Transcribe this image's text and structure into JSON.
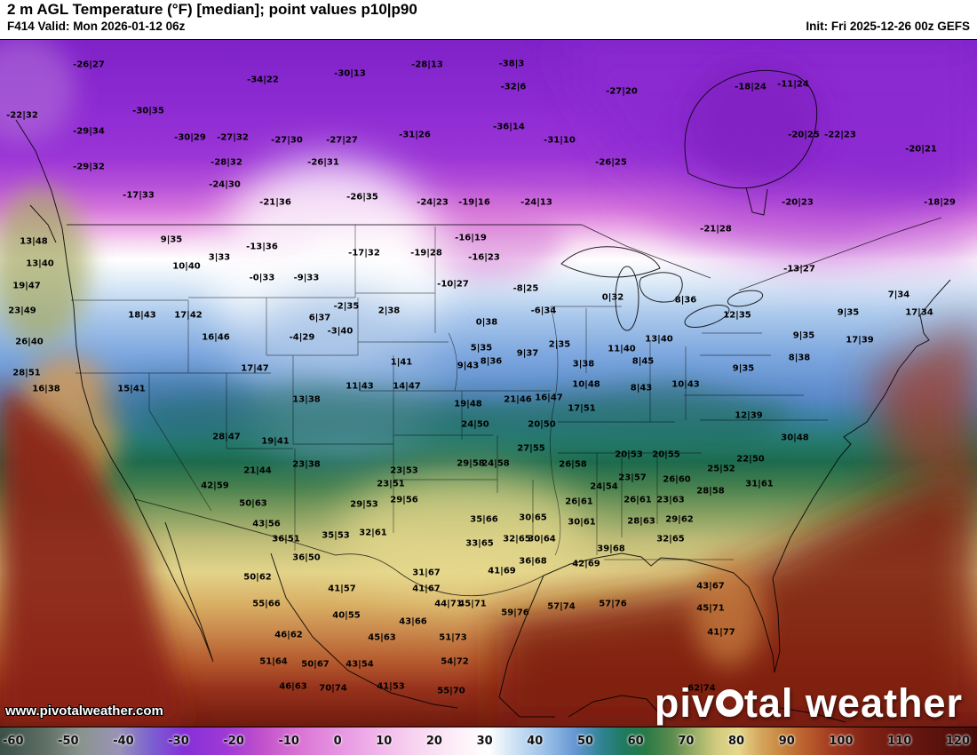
{
  "header": {
    "title": "2 m AGL Temperature (°F) [median]; point values p10|p90",
    "valid": "F414 Valid: Mon 2026-01-12 06z",
    "init": "Init: Fri 2025-12-26 00z GEFS"
  },
  "watermark": {
    "url_text": "www.pivotalweather.com",
    "brand_p1": "piv",
    "brand_p2": "tal weather"
  },
  "colorbar": {
    "ticks": [
      "-60",
      "-50",
      "-40",
      "-30",
      "-20",
      "-10",
      "0",
      "10",
      "20",
      "30",
      "40",
      "50",
      "60",
      "70",
      "80",
      "90",
      "100",
      "110",
      "120"
    ],
    "stops": [
      {
        "v": -60,
        "c": "#3c5148"
      },
      {
        "v": -52,
        "c": "#5d6e64"
      },
      {
        "v": -45,
        "c": "#8a948e"
      },
      {
        "v": -38,
        "c": "#9a93b8"
      },
      {
        "v": -32,
        "c": "#7a5fd0"
      },
      {
        "v": -26,
        "c": "#8530d8"
      },
      {
        "v": -18,
        "c": "#a03ad6"
      },
      {
        "v": -12,
        "c": "#c050cc"
      },
      {
        "v": -6,
        "c": "#d76fd2"
      },
      {
        "v": 0,
        "c": "#e28ade"
      },
      {
        "v": 8,
        "c": "#efaee8"
      },
      {
        "v": 16,
        "c": "#f7d2f0"
      },
      {
        "v": 24,
        "c": "#fdeef8"
      },
      {
        "v": 30,
        "c": "#ffffff"
      },
      {
        "v": 34,
        "c": "#d5e6f5"
      },
      {
        "v": 40,
        "c": "#a0c4ea"
      },
      {
        "v": 46,
        "c": "#6596d2"
      },
      {
        "v": 51,
        "c": "#2f8390"
      },
      {
        "v": 55,
        "c": "#1f7a5e"
      },
      {
        "v": 59,
        "c": "#2a7a47"
      },
      {
        "v": 64,
        "c": "#5e8c4f"
      },
      {
        "v": 68,
        "c": "#9aae66"
      },
      {
        "v": 72,
        "c": "#d2cb7e"
      },
      {
        "v": 76,
        "c": "#e5d88c"
      },
      {
        "v": 80,
        "c": "#d6a75e"
      },
      {
        "v": 84,
        "c": "#c8863f"
      },
      {
        "v": 88,
        "c": "#bc622f"
      },
      {
        "v": 93,
        "c": "#a43c20"
      },
      {
        "v": 100,
        "c": "#7f2214"
      },
      {
        "v": 108,
        "c": "#671610"
      },
      {
        "v": 115,
        "c": "#54100b"
      },
      {
        "v": 120,
        "c": "#470c08"
      }
    ]
  },
  "map": {
    "points": [
      [
        100,
        73,
        "-26|27"
      ],
      [
        296,
        90,
        "-34|22"
      ],
      [
        394,
        83,
        "-30|13"
      ],
      [
        481,
        73,
        "-28|13"
      ],
      [
        576,
        72,
        "-38|3"
      ],
      [
        578,
        98,
        "-32|6"
      ],
      [
        700,
        103,
        "-27|20"
      ],
      [
        845,
        98,
        "-18|24"
      ],
      [
        893,
        95,
        "-11|24"
      ],
      [
        25,
        130,
        "-22|32"
      ],
      [
        167,
        125,
        "-30|35"
      ],
      [
        100,
        148,
        "-29|34"
      ],
      [
        214,
        155,
        "-30|29"
      ],
      [
        262,
        155,
        "-27|32"
      ],
      [
        323,
        158,
        "-27|30"
      ],
      [
        385,
        158,
        "-27|27"
      ],
      [
        467,
        152,
        "-31|26"
      ],
      [
        573,
        143,
        "-36|14"
      ],
      [
        630,
        158,
        "-31|10"
      ],
      [
        905,
        152,
        "-20|25"
      ],
      [
        946,
        152,
        "-22|23"
      ],
      [
        1037,
        168,
        "-20|21"
      ],
      [
        100,
        188,
        "-29|32"
      ],
      [
        255,
        183,
        "-28|32"
      ],
      [
        364,
        183,
        "-26|31"
      ],
      [
        688,
        183,
        "-26|25"
      ],
      [
        156,
        220,
        "-17|33"
      ],
      [
        253,
        208,
        "-24|30"
      ],
      [
        310,
        228,
        "-21|36"
      ],
      [
        408,
        222,
        "-26|35"
      ],
      [
        487,
        228,
        "-24|23"
      ],
      [
        534,
        228,
        "-19|16"
      ],
      [
        604,
        228,
        "-24|13"
      ],
      [
        806,
        258,
        "-21|28"
      ],
      [
        898,
        228,
        "-20|23"
      ],
      [
        1058,
        228,
        "-18|29"
      ],
      [
        38,
        272,
        "13|48"
      ],
      [
        45,
        297,
        "13|40"
      ],
      [
        30,
        322,
        "19|47"
      ],
      [
        25,
        350,
        "23|49"
      ],
      [
        33,
        385,
        "26|40"
      ],
      [
        30,
        420,
        "28|51"
      ],
      [
        52,
        438,
        "16|38"
      ],
      [
        193,
        270,
        "9|35"
      ],
      [
        210,
        300,
        "10|40"
      ],
      [
        160,
        355,
        "18|43"
      ],
      [
        212,
        355,
        "17|42"
      ],
      [
        243,
        380,
        "16|46"
      ],
      [
        148,
        438,
        "15|41"
      ],
      [
        287,
        415,
        "17|47"
      ],
      [
        247,
        290,
        "3|33"
      ],
      [
        295,
        313,
        "-0|33"
      ],
      [
        345,
        313,
        "-9|33"
      ],
      [
        295,
        278,
        "-13|36"
      ],
      [
        410,
        285,
        "-17|32"
      ],
      [
        480,
        285,
        "-19|28"
      ],
      [
        530,
        268,
        "-16|19"
      ],
      [
        545,
        290,
        "-16|23"
      ],
      [
        390,
        345,
        "-2|35"
      ],
      [
        438,
        350,
        "2|38"
      ],
      [
        340,
        380,
        "-4|29"
      ],
      [
        383,
        373,
        "-3|40"
      ],
      [
        360,
        358,
        "6|37"
      ],
      [
        510,
        320,
        "-10|27"
      ],
      [
        592,
        325,
        "-8|25"
      ],
      [
        612,
        350,
        "-6|34"
      ],
      [
        690,
        335,
        "0|32"
      ],
      [
        548,
        363,
        "0|38"
      ],
      [
        452,
        408,
        "1|41"
      ],
      [
        405,
        435,
        "11|43"
      ],
      [
        345,
        450,
        "13|38"
      ],
      [
        458,
        435,
        "14|47"
      ],
      [
        527,
        412,
        "9|43"
      ],
      [
        553,
        407,
        "8|36"
      ],
      [
        594,
        398,
        "9|37"
      ],
      [
        542,
        392,
        "5|35"
      ],
      [
        630,
        388,
        "2|35"
      ],
      [
        657,
        410,
        "3|38"
      ],
      [
        700,
        393,
        "11|40"
      ],
      [
        742,
        382,
        "13|40"
      ],
      [
        660,
        433,
        "10|48"
      ],
      [
        724,
        407,
        "8|45"
      ],
      [
        722,
        437,
        "8|43"
      ],
      [
        772,
        433,
        "10|43"
      ],
      [
        655,
        460,
        "17|51"
      ],
      [
        618,
        448,
        "16|47"
      ],
      [
        583,
        450,
        "21|46"
      ],
      [
        527,
        455,
        "19|48"
      ],
      [
        837,
        415,
        "9|35"
      ],
      [
        905,
        378,
        "9|35"
      ],
      [
        900,
        403,
        "8|38"
      ],
      [
        772,
        338,
        "8|36"
      ],
      [
        830,
        355,
        "12|35"
      ],
      [
        900,
        303,
        "-13|27"
      ],
      [
        1012,
        332,
        "7|34"
      ],
      [
        1035,
        352,
        "17|34"
      ],
      [
        955,
        352,
        "9|35"
      ],
      [
        968,
        383,
        "17|39"
      ],
      [
        843,
        468,
        "12|39"
      ],
      [
        895,
        493,
        "30|48"
      ],
      [
        845,
        517,
        "22|50"
      ],
      [
        812,
        528,
        "25|52"
      ],
      [
        855,
        545,
        "31|61"
      ],
      [
        800,
        553,
        "28|58"
      ],
      [
        610,
        478,
        "20|50"
      ],
      [
        535,
        478,
        "24|50"
      ],
      [
        598,
        505,
        "27|55"
      ],
      [
        558,
        522,
        "24|58"
      ],
      [
        530,
        522,
        "29|58"
      ],
      [
        455,
        530,
        "23|53"
      ],
      [
        440,
        545,
        "23|51"
      ],
      [
        455,
        563,
        "29|56"
      ],
      [
        410,
        568,
        "29|53"
      ],
      [
        345,
        523,
        "23|38"
      ],
      [
        290,
        530,
        "21|44"
      ],
      [
        255,
        492,
        "28|47"
      ],
      [
        310,
        497,
        "19|41"
      ],
      [
        242,
        547,
        "42|59"
      ],
      [
        285,
        567,
        "50|63"
      ],
      [
        300,
        590,
        "43|56"
      ],
      [
        322,
        607,
        "36|51"
      ],
      [
        378,
        603,
        "35|53"
      ],
      [
        345,
        628,
        "36|50"
      ],
      [
        420,
        600,
        "32|61"
      ],
      [
        540,
        612,
        "33|65"
      ],
      [
        582,
        607,
        "32|65"
      ],
      [
        610,
        607,
        "30|64"
      ],
      [
        545,
        585,
        "35|66"
      ],
      [
        600,
        583,
        "30|65"
      ],
      [
        655,
        588,
        "30|61"
      ],
      [
        652,
        565,
        "26|61"
      ],
      [
        680,
        548,
        "24|54"
      ],
      [
        645,
        523,
        "26|58"
      ],
      [
        708,
        512,
        "20|53"
      ],
      [
        750,
        512,
        "20|55"
      ],
      [
        712,
        538,
        "23|57"
      ],
      [
        762,
        540,
        "26|60"
      ],
      [
        718,
        563,
        "26|61"
      ],
      [
        755,
        563,
        "23|63"
      ],
      [
        722,
        587,
        "28|63"
      ],
      [
        765,
        585,
        "29|62"
      ],
      [
        755,
        607,
        "32|65"
      ],
      [
        688,
        618,
        "39|68"
      ],
      [
        660,
        635,
        "42|69"
      ],
      [
        600,
        632,
        "36|68"
      ],
      [
        565,
        643,
        "41|69"
      ],
      [
        480,
        645,
        "31|67"
      ],
      [
        480,
        663,
        "41|67"
      ],
      [
        505,
        680,
        "44|71"
      ],
      [
        532,
        680,
        "45|71"
      ],
      [
        580,
        690,
        "59|76"
      ],
      [
        632,
        683,
        "57|74"
      ],
      [
        690,
        680,
        "57|76"
      ],
      [
        800,
        660,
        "43|67"
      ],
      [
        800,
        685,
        "45|71"
      ],
      [
        812,
        712,
        "41|77"
      ],
      [
        790,
        775,
        "62|74"
      ],
      [
        290,
        650,
        "50|62"
      ],
      [
        300,
        680,
        "55|66"
      ],
      [
        385,
        663,
        "41|57"
      ],
      [
        390,
        693,
        "40|55"
      ],
      [
        325,
        715,
        "46|62"
      ],
      [
        430,
        718,
        "45|63"
      ],
      [
        465,
        700,
        "43|66"
      ],
      [
        510,
        718,
        "51|73"
      ],
      [
        308,
        745,
        "51|64"
      ],
      [
        355,
        748,
        "50|67"
      ],
      [
        405,
        748,
        "43|54"
      ],
      [
        375,
        775,
        "70|74"
      ],
      [
        440,
        773,
        "41|53"
      ],
      [
        508,
        778,
        "55|70"
      ],
      [
        512,
        745,
        "54|72"
      ],
      [
        330,
        773,
        "46|63"
      ]
    ]
  }
}
